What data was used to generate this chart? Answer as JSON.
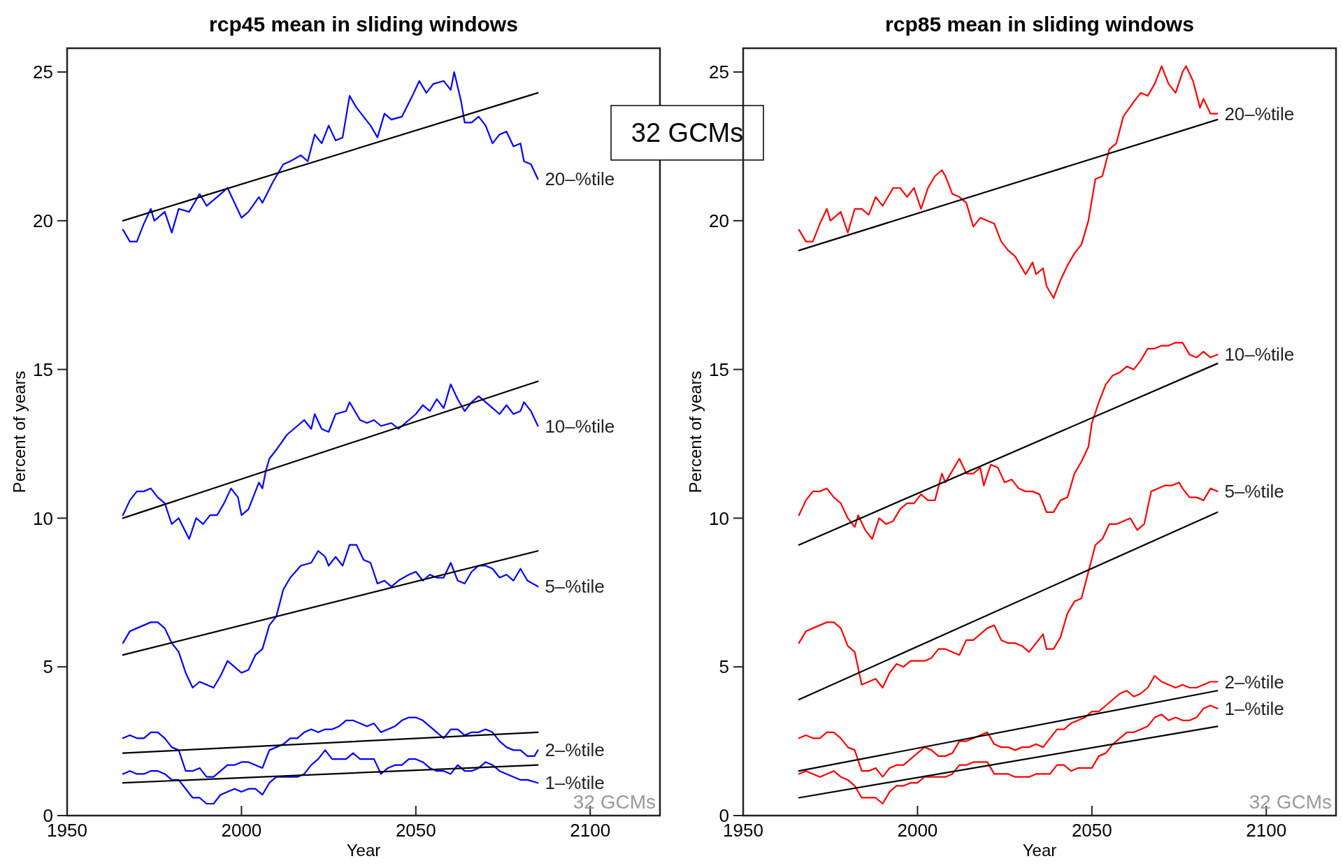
{
  "chart_data": [
    {
      "type": "line",
      "title": "rcp45 mean in sliding windows",
      "xlabel": "Year",
      "ylabel": "Percent of years",
      "xlim": [
        1950,
        2120
      ],
      "ylim": [
        0,
        25.8
      ],
      "xticks": [
        1950,
        2000,
        2050,
        2100
      ],
      "yticks": [
        0,
        5,
        10,
        15,
        20,
        25
      ],
      "annotations": [
        "32 GCMs",
        "32 GCMs"
      ],
      "series": [
        {
          "name": "20–%tile",
          "color": "#0000ff",
          "x": [
            1966,
            1968,
            1970,
            1972,
            1974,
            1975,
            1978,
            1980,
            1982,
            1985,
            1988,
            1990,
            1993,
            1996,
            2000,
            2002,
            2005,
            2006,
            2009,
            2012,
            2014,
            2017,
            2019,
            2021,
            2023,
            2025,
            2027,
            2029,
            2031,
            2033,
            2037,
            2039,
            2041,
            2043,
            2046,
            2049,
            2051,
            2053,
            2055,
            2058,
            2060,
            2061,
            2063,
            2064,
            2066,
            2068,
            2070,
            2072,
            2074,
            2076,
            2078,
            2080,
            2081,
            2083,
            2085
          ],
          "values": [
            19.7,
            19.3,
            19.3,
            19.9,
            20.4,
            20.0,
            20.3,
            19.6,
            20.4,
            20.3,
            20.9,
            20.5,
            20.8,
            21.1,
            20.1,
            20.3,
            20.8,
            20.6,
            21.3,
            21.9,
            22.0,
            22.2,
            22.0,
            22.9,
            22.6,
            23.2,
            22.7,
            22.8,
            24.2,
            23.8,
            23.2,
            22.8,
            23.6,
            23.4,
            23.5,
            24.2,
            24.7,
            24.3,
            24.6,
            24.7,
            24.4,
            25.0,
            24.0,
            23.3,
            23.3,
            23.5,
            23.2,
            22.6,
            22.9,
            23.0,
            22.5,
            22.6,
            22.0,
            21.9,
            21.4
          ]
        },
        {
          "name": "10–%tile",
          "color": "#0000ff",
          "x": [
            1966,
            1968,
            1970,
            1972,
            1974,
            1976,
            1978,
            1980,
            1982,
            1985,
            1987,
            1989,
            1991,
            1993,
            1995,
            1997,
            1999,
            2000,
            2002,
            2005,
            2006,
            2007,
            2008,
            2010,
            2013,
            2015,
            2018,
            2020,
            2021,
            2023,
            2025,
            2027,
            2030,
            2031,
            2034,
            2036,
            2038,
            2040,
            2043,
            2045,
            2048,
            2050,
            2052,
            2054,
            2056,
            2058,
            2060,
            2062,
            2064,
            2066,
            2068,
            2070,
            2072,
            2074,
            2076,
            2078,
            2080,
            2081,
            2083,
            2085
          ],
          "values": [
            10.1,
            10.6,
            10.9,
            10.9,
            11.0,
            10.7,
            10.5,
            9.8,
            10.0,
            9.3,
            10.0,
            9.8,
            10.1,
            10.1,
            10.5,
            11.0,
            10.7,
            10.1,
            10.3,
            11.2,
            11.0,
            11.6,
            12.0,
            12.3,
            12.8,
            13.0,
            13.3,
            13.0,
            13.5,
            13.0,
            12.9,
            13.5,
            13.6,
            13.9,
            13.3,
            13.2,
            13.3,
            13.1,
            13.2,
            13.0,
            13.3,
            13.5,
            13.8,
            13.6,
            14.0,
            13.7,
            14.5,
            14.0,
            13.6,
            13.9,
            14.1,
            13.9,
            13.7,
            13.5,
            13.8,
            13.5,
            13.6,
            13.9,
            13.6,
            13.1
          ]
        },
        {
          "name": "5–%tile",
          "color": "#0000ff",
          "x": [
            1966,
            1968,
            1970,
            1972,
            1974,
            1976,
            1978,
            1980,
            1982,
            1984,
            1986,
            1988,
            1990,
            1992,
            1994,
            1996,
            1998,
            2000,
            2002,
            2004,
            2006,
            2008,
            2010,
            2012,
            2014,
            2017,
            2020,
            2022,
            2024,
            2025,
            2027,
            2029,
            2031,
            2033,
            2035,
            2037,
            2039,
            2041,
            2043,
            2045,
            2048,
            2050,
            2052,
            2054,
            2056,
            2058,
            2060,
            2062,
            2064,
            2066,
            2068,
            2070,
            2072,
            2074,
            2076,
            2078,
            2080,
            2082,
            2085
          ],
          "values": [
            5.8,
            6.2,
            6.3,
            6.4,
            6.5,
            6.5,
            6.3,
            5.8,
            5.5,
            4.8,
            4.3,
            4.5,
            4.4,
            4.3,
            4.7,
            5.2,
            5.0,
            4.8,
            4.9,
            5.4,
            5.6,
            6.4,
            6.7,
            7.6,
            8.0,
            8.4,
            8.5,
            8.9,
            8.7,
            8.4,
            8.7,
            8.4,
            9.1,
            9.1,
            8.6,
            8.5,
            7.8,
            7.9,
            7.7,
            7.9,
            8.1,
            8.2,
            7.9,
            8.1,
            8.0,
            8.0,
            8.5,
            7.9,
            7.8,
            8.2,
            8.4,
            8.4,
            8.3,
            8.0,
            8.1,
            7.9,
            8.3,
            7.9,
            7.7
          ]
        },
        {
          "name": "2–%tile",
          "color": "#0000ff",
          "x": [
            1966,
            1968,
            1970,
            1972,
            1974,
            1976,
            1978,
            1980,
            1982,
            1984,
            1986,
            1988,
            1990,
            1992,
            1994,
            1996,
            1998,
            2000,
            2002,
            2004,
            2006,
            2008,
            2010,
            2012,
            2014,
            2016,
            2018,
            2020,
            2022,
            2024,
            2026,
            2028,
            2030,
            2032,
            2034,
            2036,
            2038,
            2040,
            2042,
            2044,
            2046,
            2048,
            2050,
            2052,
            2054,
            2056,
            2058,
            2060,
            2062,
            2064,
            2066,
            2068,
            2070,
            2072,
            2074,
            2076,
            2078,
            2080,
            2082,
            2084,
            2085
          ],
          "values": [
            2.6,
            2.7,
            2.6,
            2.6,
            2.8,
            2.8,
            2.6,
            2.3,
            2.2,
            1.5,
            1.5,
            1.6,
            1.3,
            1.3,
            1.5,
            1.7,
            1.7,
            1.8,
            1.8,
            1.7,
            1.6,
            2.2,
            2.3,
            2.4,
            2.6,
            2.6,
            2.8,
            2.9,
            2.8,
            2.9,
            2.9,
            3.0,
            3.2,
            3.2,
            3.1,
            3.0,
            3.1,
            2.8,
            2.9,
            3.0,
            3.2,
            3.3,
            3.3,
            3.2,
            3.0,
            2.8,
            2.6,
            2.9,
            2.9,
            2.7,
            2.8,
            2.8,
            2.9,
            2.8,
            2.5,
            2.3,
            2.2,
            2.2,
            2.0,
            2.0,
            2.2
          ]
        },
        {
          "name": "1–%tile",
          "color": "#0000ff",
          "x": [
            1966,
            1968,
            1970,
            1972,
            1974,
            1976,
            1978,
            1980,
            1982,
            1984,
            1986,
            1988,
            1990,
            1992,
            1994,
            1996,
            1998,
            2000,
            2002,
            2004,
            2006,
            2008,
            2010,
            2012,
            2014,
            2016,
            2018,
            2020,
            2022,
            2024,
            2026,
            2028,
            2030,
            2032,
            2034,
            2036,
            2038,
            2040,
            2042,
            2044,
            2046,
            2048,
            2050,
            2052,
            2054,
            2056,
            2058,
            2060,
            2062,
            2064,
            2066,
            2068,
            2070,
            2072,
            2074,
            2076,
            2078,
            2080,
            2082,
            2085
          ],
          "values": [
            1.4,
            1.5,
            1.4,
            1.4,
            1.5,
            1.5,
            1.4,
            1.2,
            1.2,
            0.9,
            0.6,
            0.6,
            0.4,
            0.4,
            0.7,
            0.8,
            0.9,
            0.8,
            0.9,
            0.9,
            0.7,
            1.1,
            1.3,
            1.3,
            1.3,
            1.3,
            1.4,
            1.7,
            1.9,
            2.2,
            1.9,
            1.9,
            1.9,
            2.1,
            1.9,
            1.9,
            1.9,
            1.4,
            1.6,
            1.7,
            1.7,
            1.9,
            1.9,
            1.8,
            1.6,
            1.5,
            1.5,
            1.4,
            1.7,
            1.5,
            1.5,
            1.6,
            1.8,
            1.7,
            1.5,
            1.4,
            1.3,
            1.2,
            1.2,
            1.1
          ]
        },
        {
          "color": "#000000",
          "x": [
            1966,
            2085
          ],
          "values": [
            20.0,
            24.3
          ]
        },
        {
          "color": "#000000",
          "x": [
            1966,
            2085
          ],
          "values": [
            10.0,
            14.6
          ]
        },
        {
          "color": "#000000",
          "x": [
            1966,
            2085
          ],
          "values": [
            5.4,
            8.9
          ]
        },
        {
          "color": "#000000",
          "x": [
            1966,
            2085
          ],
          "values": [
            2.1,
            2.8
          ]
        },
        {
          "color": "#000000",
          "x": [
            1966,
            2085
          ],
          "values": [
            1.1,
            1.7
          ]
        }
      ]
    },
    {
      "type": "line",
      "title": "rcp85 mean in sliding windows",
      "xlabel": "Year",
      "ylabel": "Percent of years",
      "xlim": [
        1950,
        2120
      ],
      "ylim": [
        0,
        25.8
      ],
      "xticks": [
        1950,
        2000,
        2050,
        2100
      ],
      "yticks": [
        0,
        5,
        10,
        15,
        20,
        25
      ],
      "annotations": [
        "32 GCMs"
      ],
      "series": [
        {
          "name": "20–%tile",
          "color": "#ff0000",
          "x": [
            1966,
            1968,
            1970,
            1972,
            1974,
            1975,
            1978,
            1980,
            1982,
            1984,
            1986,
            1988,
            1990,
            1993,
            1995,
            1997,
            1999,
            2001,
            2003,
            2005,
            2007,
            2008,
            2010,
            2012,
            2014,
            2016,
            2018,
            2020,
            2022,
            2024,
            2026,
            2028,
            2029,
            2031,
            2033,
            2034,
            2036,
            2037,
            2039,
            2041,
            2043,
            2045,
            2047,
            2049,
            2051,
            2053,
            2055,
            2057,
            2059,
            2062,
            2064,
            2066,
            2068,
            2070,
            2072,
            2074,
            2076,
            2077,
            2079,
            2081,
            2082,
            2084,
            2086
          ],
          "values": [
            19.7,
            19.3,
            19.3,
            19.9,
            20.4,
            20.0,
            20.3,
            19.6,
            20.4,
            20.4,
            20.2,
            20.8,
            20.5,
            21.1,
            21.1,
            20.8,
            21.1,
            20.4,
            21.1,
            21.5,
            21.7,
            21.5,
            20.9,
            20.8,
            20.6,
            19.8,
            20.1,
            20.0,
            19.9,
            19.3,
            19.0,
            18.8,
            18.6,
            18.2,
            18.6,
            18.2,
            18.4,
            17.8,
            17.4,
            18.0,
            18.5,
            18.9,
            19.2,
            20.0,
            21.4,
            21.5,
            22.4,
            22.6,
            23.5,
            24.0,
            24.3,
            24.2,
            24.6,
            25.2,
            24.6,
            24.3,
            25.0,
            25.2,
            24.7,
            23.8,
            24.1,
            23.6,
            23.6
          ]
        },
        {
          "name": "10–%tile",
          "color": "#ff0000",
          "x": [
            1966,
            1968,
            1970,
            1972,
            1974,
            1976,
            1978,
            1980,
            1982,
            1983,
            1985,
            1987,
            1989,
            1991,
            1993,
            1995,
            1997,
            1999,
            2001,
            2003,
            2005,
            2007,
            2008,
            2010,
            2012,
            2014,
            2016,
            2018,
            2019,
            2021,
            2023,
            2025,
            2027,
            2029,
            2031,
            2033,
            2035,
            2037,
            2039,
            2041,
            2043,
            2045,
            2047,
            2049,
            2050,
            2052,
            2054,
            2056,
            2058,
            2060,
            2062,
            2064,
            2066,
            2068,
            2070,
            2072,
            2074,
            2076,
            2078,
            2080,
            2082,
            2084,
            2086
          ],
          "values": [
            10.1,
            10.6,
            10.9,
            10.9,
            11.0,
            10.7,
            10.5,
            10.0,
            9.7,
            10.1,
            9.6,
            9.3,
            10.0,
            9.8,
            9.9,
            10.3,
            10.5,
            10.5,
            10.8,
            10.6,
            10.6,
            11.5,
            11.2,
            11.6,
            12.0,
            11.5,
            11.5,
            11.7,
            11.1,
            11.8,
            11.7,
            11.2,
            11.3,
            11.0,
            10.9,
            10.9,
            10.8,
            10.2,
            10.2,
            10.6,
            10.7,
            11.5,
            11.9,
            12.4,
            13.2,
            13.9,
            14.5,
            14.8,
            14.9,
            15.1,
            15.0,
            15.3,
            15.7,
            15.7,
            15.8,
            15.8,
            15.9,
            15.9,
            15.5,
            15.4,
            15.6,
            15.4,
            15.5
          ]
        },
        {
          "name": "5–%tile",
          "color": "#ff0000",
          "x": [
            1966,
            1968,
            1970,
            1972,
            1974,
            1976,
            1978,
            1980,
            1982,
            1984,
            1986,
            1988,
            1990,
            1992,
            1994,
            1996,
            1998,
            2000,
            2002,
            2004,
            2006,
            2008,
            2010,
            2012,
            2014,
            2016,
            2018,
            2020,
            2022,
            2024,
            2026,
            2028,
            2030,
            2032,
            2034,
            2036,
            2037,
            2039,
            2041,
            2043,
            2045,
            2047,
            2049,
            2051,
            2053,
            2055,
            2057,
            2059,
            2061,
            2063,
            2065,
            2067,
            2069,
            2071,
            2073,
            2075,
            2076,
            2078,
            2080,
            2082,
            2084,
            2086
          ],
          "values": [
            5.8,
            6.2,
            6.3,
            6.4,
            6.5,
            6.5,
            6.3,
            5.7,
            5.5,
            4.4,
            4.5,
            4.6,
            4.3,
            4.8,
            5.1,
            5.0,
            5.2,
            5.2,
            5.2,
            5.3,
            5.6,
            5.6,
            5.5,
            5.4,
            5.9,
            5.9,
            6.1,
            6.3,
            6.4,
            5.9,
            5.8,
            5.8,
            5.7,
            5.5,
            5.8,
            6.1,
            5.6,
            5.6,
            6.0,
            6.8,
            7.2,
            7.3,
            8.2,
            9.1,
            9.3,
            9.8,
            9.8,
            9.9,
            10.0,
            9.6,
            9.8,
            10.9,
            11.0,
            11.1,
            11.1,
            11.2,
            11.0,
            10.7,
            10.7,
            10.6,
            11.0,
            10.9
          ]
        },
        {
          "name": "2–%tile",
          "color": "#ff0000",
          "x": [
            1966,
            1968,
            1970,
            1972,
            1974,
            1976,
            1978,
            1980,
            1982,
            1984,
            1986,
            1988,
            1990,
            1992,
            1994,
            1996,
            1998,
            2000,
            2002,
            2004,
            2006,
            2008,
            2010,
            2012,
            2014,
            2016,
            2018,
            2020,
            2022,
            2024,
            2026,
            2028,
            2030,
            2032,
            2034,
            2036,
            2038,
            2040,
            2042,
            2044,
            2046,
            2048,
            2050,
            2052,
            2054,
            2056,
            2058,
            2060,
            2062,
            2064,
            2066,
            2068,
            2070,
            2072,
            2074,
            2076,
            2078,
            2080,
            2082,
            2084,
            2086
          ],
          "values": [
            2.6,
            2.7,
            2.6,
            2.6,
            2.8,
            2.8,
            2.6,
            2.3,
            2.2,
            1.5,
            1.5,
            1.6,
            1.3,
            1.6,
            1.7,
            1.7,
            1.9,
            2.1,
            2.3,
            2.2,
            2.0,
            2.0,
            2.1,
            2.5,
            2.5,
            2.6,
            2.7,
            2.8,
            2.4,
            2.3,
            2.3,
            2.2,
            2.3,
            2.3,
            2.4,
            2.3,
            2.6,
            2.9,
            2.9,
            3.1,
            3.2,
            3.3,
            3.5,
            3.5,
            3.7,
            3.9,
            4.1,
            4.2,
            4.0,
            4.1,
            4.3,
            4.7,
            4.5,
            4.4,
            4.3,
            4.4,
            4.3,
            4.3,
            4.4,
            4.5,
            4.5
          ]
        },
        {
          "name": "1–%tile",
          "color": "#ff0000",
          "x": [
            1966,
            1968,
            1970,
            1972,
            1974,
            1976,
            1978,
            1980,
            1982,
            1984,
            1986,
            1988,
            1990,
            1992,
            1994,
            1996,
            1998,
            2000,
            2002,
            2004,
            2006,
            2008,
            2010,
            2012,
            2014,
            2016,
            2018,
            2020,
            2022,
            2024,
            2026,
            2028,
            2030,
            2032,
            2034,
            2036,
            2038,
            2040,
            2042,
            2044,
            2046,
            2048,
            2050,
            2052,
            2054,
            2056,
            2058,
            2060,
            2062,
            2064,
            2066,
            2068,
            2070,
            2072,
            2074,
            2076,
            2078,
            2080,
            2082,
            2084,
            2086
          ],
          "values": [
            1.4,
            1.5,
            1.4,
            1.3,
            1.4,
            1.5,
            1.3,
            1.2,
            1.0,
            0.6,
            0.6,
            0.6,
            0.4,
            0.8,
            1.0,
            1.0,
            1.1,
            1.1,
            1.3,
            1.3,
            1.3,
            1.3,
            1.4,
            1.7,
            1.7,
            1.8,
            1.8,
            1.8,
            1.4,
            1.4,
            1.4,
            1.3,
            1.3,
            1.3,
            1.4,
            1.4,
            1.4,
            1.7,
            1.7,
            1.5,
            1.6,
            1.6,
            1.6,
            2.0,
            2.1,
            2.4,
            2.6,
            2.8,
            2.8,
            2.9,
            3.0,
            3.3,
            3.4,
            3.2,
            3.3,
            3.2,
            3.2,
            3.3,
            3.6,
            3.7,
            3.6
          ]
        },
        {
          "color": "#000000",
          "x": [
            1966,
            2086
          ],
          "values": [
            19.0,
            23.4
          ]
        },
        {
          "color": "#000000",
          "x": [
            1966,
            2086
          ],
          "values": [
            9.1,
            15.2
          ]
        },
        {
          "color": "#000000",
          "x": [
            1966,
            2086
          ],
          "values": [
            3.9,
            10.2
          ]
        },
        {
          "color": "#000000",
          "x": [
            1966,
            2086
          ],
          "values": [
            1.5,
            4.2
          ]
        },
        {
          "color": "#000000",
          "x": [
            1966,
            2086
          ],
          "values": [
            0.6,
            3.0
          ]
        }
      ]
    }
  ]
}
